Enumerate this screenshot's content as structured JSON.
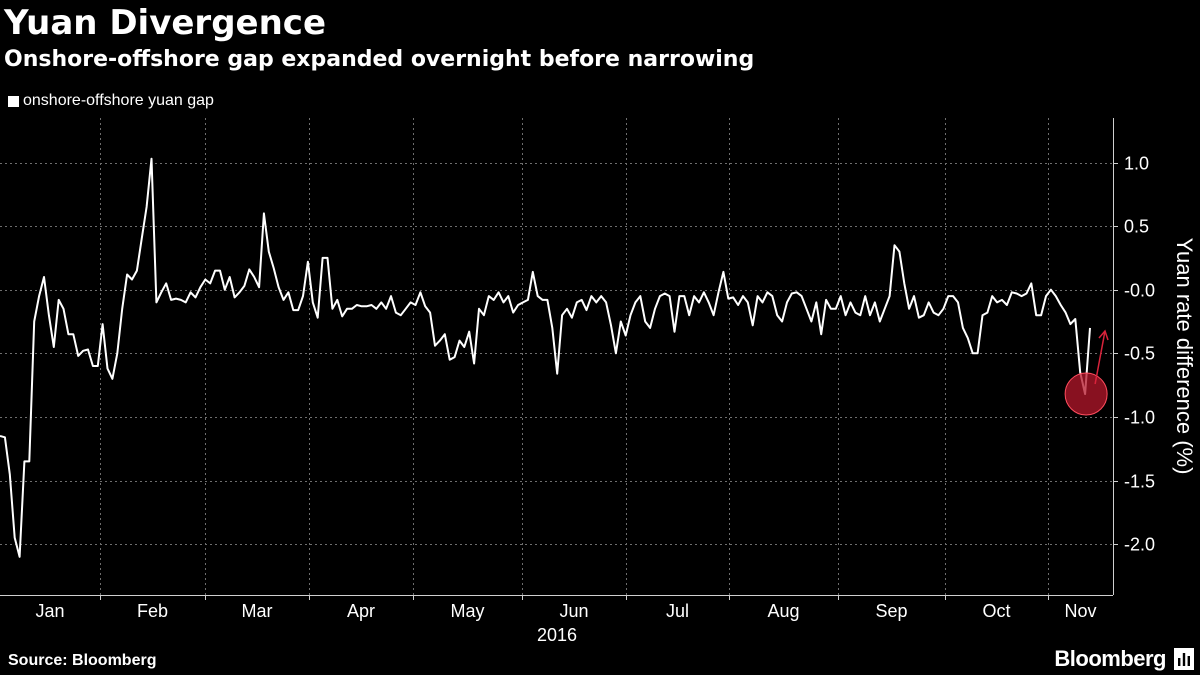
{
  "chart_data": {
    "type": "line",
    "title": "Yuan Divergence",
    "subtitle": "Onshore-offshore gap expanded overnight before narrowing",
    "ylabel": "Yuan rate difference (%)",
    "xlabel_year": "2016",
    "ylim": [
      -2.4,
      1.35
    ],
    "y_ticks": [
      1.0,
      0.5,
      0.0,
      -0.5,
      -1.0,
      -1.5,
      -2.0
    ],
    "y_tick_labels": [
      "1.0",
      "0.5",
      "-0.0",
      "-0.5",
      "-1.0",
      "-1.5",
      "-2.0"
    ],
    "x_month_labels": [
      "Jan",
      "Feb",
      "Mar",
      "Apr",
      "May",
      "Jun",
      "Jul",
      "Aug",
      "Sep",
      "Oct",
      "Nov"
    ],
    "legend_position": "top-left",
    "grid": true,
    "annotation": "red circle highlighting the overnight low with an arrow pointing up toward the narrowing gap",
    "colors": {
      "background": "#000000",
      "line": "#ffffff",
      "grid": "#6e6e6e",
      "highlight": "#b5172b"
    },
    "series": [
      {
        "name": "onshore-offshore yuan gap",
        "values": [
          -1.15,
          -1.16,
          -1.45,
          -1.95,
          -2.1,
          -1.35,
          -1.35,
          -0.25,
          -0.05,
          0.1,
          -0.2,
          -0.45,
          -0.08,
          -0.15,
          -0.35,
          -0.35,
          -0.52,
          -0.48,
          -0.47,
          -0.6,
          -0.6,
          -0.27,
          -0.62,
          -0.7,
          -0.5,
          -0.15,
          0.12,
          0.08,
          0.15,
          0.4,
          0.65,
          1.03,
          -0.1,
          -0.02,
          0.05,
          -0.08,
          -0.07,
          -0.08,
          -0.1,
          -0.02,
          -0.06,
          0.02,
          0.08,
          0.05,
          0.15,
          0.15,
          0.0,
          0.1,
          -0.06,
          -0.02,
          0.03,
          0.16,
          0.1,
          0.02,
          0.6,
          0.3,
          0.17,
          0.02,
          -0.08,
          -0.02,
          -0.16,
          -0.16,
          -0.05,
          0.22,
          -0.1,
          -0.22,
          0.25,
          0.25,
          -0.15,
          -0.08,
          -0.21,
          -0.15,
          -0.15,
          -0.12,
          -0.13,
          -0.13,
          -0.12,
          -0.15,
          -0.1,
          -0.15,
          -0.05,
          -0.18,
          -0.2,
          -0.15,
          -0.1,
          -0.12,
          -0.02,
          -0.13,
          -0.18,
          -0.44,
          -0.4,
          -0.35,
          -0.55,
          -0.53,
          -0.4,
          -0.45,
          -0.33,
          -0.58,
          -0.15,
          -0.2,
          -0.05,
          -0.08,
          -0.02,
          -0.1,
          -0.05,
          -0.18,
          -0.12,
          -0.1,
          -0.08,
          0.14,
          -0.05,
          -0.08,
          -0.08,
          -0.3,
          -0.66,
          -0.2,
          -0.15,
          -0.22,
          -0.1,
          -0.08,
          -0.16,
          -0.05,
          -0.1,
          -0.05,
          -0.1,
          -0.28,
          -0.5,
          -0.25,
          -0.36,
          -0.2,
          -0.1,
          -0.05,
          -0.25,
          -0.3,
          -0.15,
          -0.05,
          -0.03,
          -0.05,
          -0.33,
          -0.05,
          -0.05,
          -0.2,
          -0.05,
          -0.1,
          -0.02,
          -0.1,
          -0.2,
          -0.02,
          0.14,
          -0.07,
          -0.06,
          -0.12,
          -0.05,
          -0.1,
          -0.28,
          -0.05,
          -0.1,
          -0.02,
          -0.05,
          -0.2,
          -0.25,
          -0.1,
          -0.03,
          -0.02,
          -0.05,
          -0.15,
          -0.25,
          -0.1,
          -0.35,
          -0.08,
          -0.15,
          -0.15,
          -0.05,
          -0.2,
          -0.1,
          -0.18,
          -0.2,
          -0.05,
          -0.2,
          -0.1,
          -0.25,
          -0.15,
          -0.05,
          0.35,
          0.3,
          0.05,
          -0.15,
          -0.05,
          -0.22,
          -0.2,
          -0.1,
          -0.18,
          -0.2,
          -0.15,
          -0.05,
          -0.05,
          -0.1,
          -0.3,
          -0.38,
          -0.5,
          -0.5,
          -0.2,
          -0.18,
          -0.05,
          -0.1,
          -0.08,
          -0.12,
          -0.02,
          -0.03,
          -0.05,
          -0.03,
          0.05,
          -0.2,
          -0.2,
          -0.05,
          0.0,
          -0.05,
          -0.12,
          -0.18,
          -0.27,
          -0.23,
          -0.65,
          -0.82,
          -0.3
        ]
      }
    ]
  },
  "legend": {
    "label": "onshore-offshore yuan gap"
  },
  "footer": {
    "source": "Source: Bloomberg",
    "brand": "Bloomberg"
  }
}
